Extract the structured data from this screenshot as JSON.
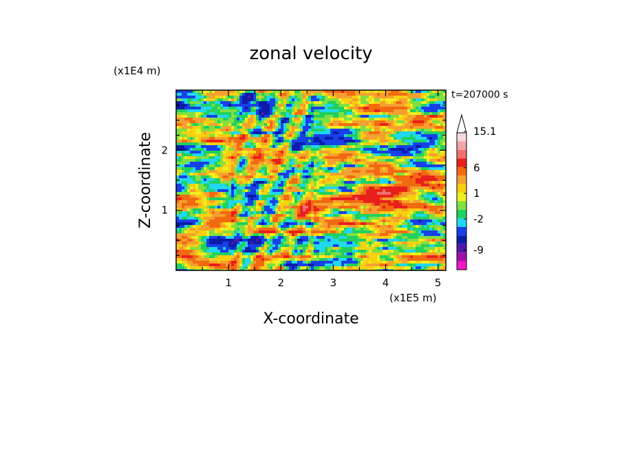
{
  "chart_data": {
    "type": "heatmap",
    "title": "zonal velocity",
    "xlabel": "X-coordinate",
    "ylabel": "Z-coordinate",
    "x_scale_label": "(x1E5 m)",
    "y_scale_label": "(x1E4 m)",
    "time_label": "t=207000 s",
    "xlim": [
      0,
      5.15
    ],
    "ylim": [
      0,
      3.0
    ],
    "x_ticks": [
      1,
      2,
      3,
      4,
      5
    ],
    "y_ticks": [
      1,
      2
    ],
    "colorbar": {
      "tick_labels": [
        "15.1",
        "6",
        "1",
        "-2",
        "-9"
      ],
      "tick_values": [
        15.1,
        6,
        1,
        -2,
        -9
      ],
      "extend_top": true,
      "levels": [
        {
          "upper": 999,
          "color": "#f8d8dc"
        },
        {
          "upper": 15.1,
          "color": "#f2a6a8"
        },
        {
          "upper": 12,
          "color": "#f07070"
        },
        {
          "upper": 9,
          "color": "#e8201c"
        },
        {
          "upper": 6,
          "color": "#f26a10"
        },
        {
          "upper": 4,
          "color": "#f5a030"
        },
        {
          "upper": 2.5,
          "color": "#f8d010"
        },
        {
          "upper": 1.5,
          "color": "#f0f020"
        },
        {
          "upper": 1,
          "color": "#80e040"
        },
        {
          "upper": 0,
          "color": "#20d060"
        },
        {
          "upper": -1,
          "color": "#20d8f0"
        },
        {
          "upper": -2,
          "color": "#1840e8"
        },
        {
          "upper": -4,
          "color": "#0c1ca8"
        },
        {
          "upper": -6.5,
          "color": "#5018a8"
        },
        {
          "upper": -9,
          "color": "#a010a8"
        },
        {
          "upper": -11.5,
          "color": "#f018c8"
        }
      ]
    }
  }
}
